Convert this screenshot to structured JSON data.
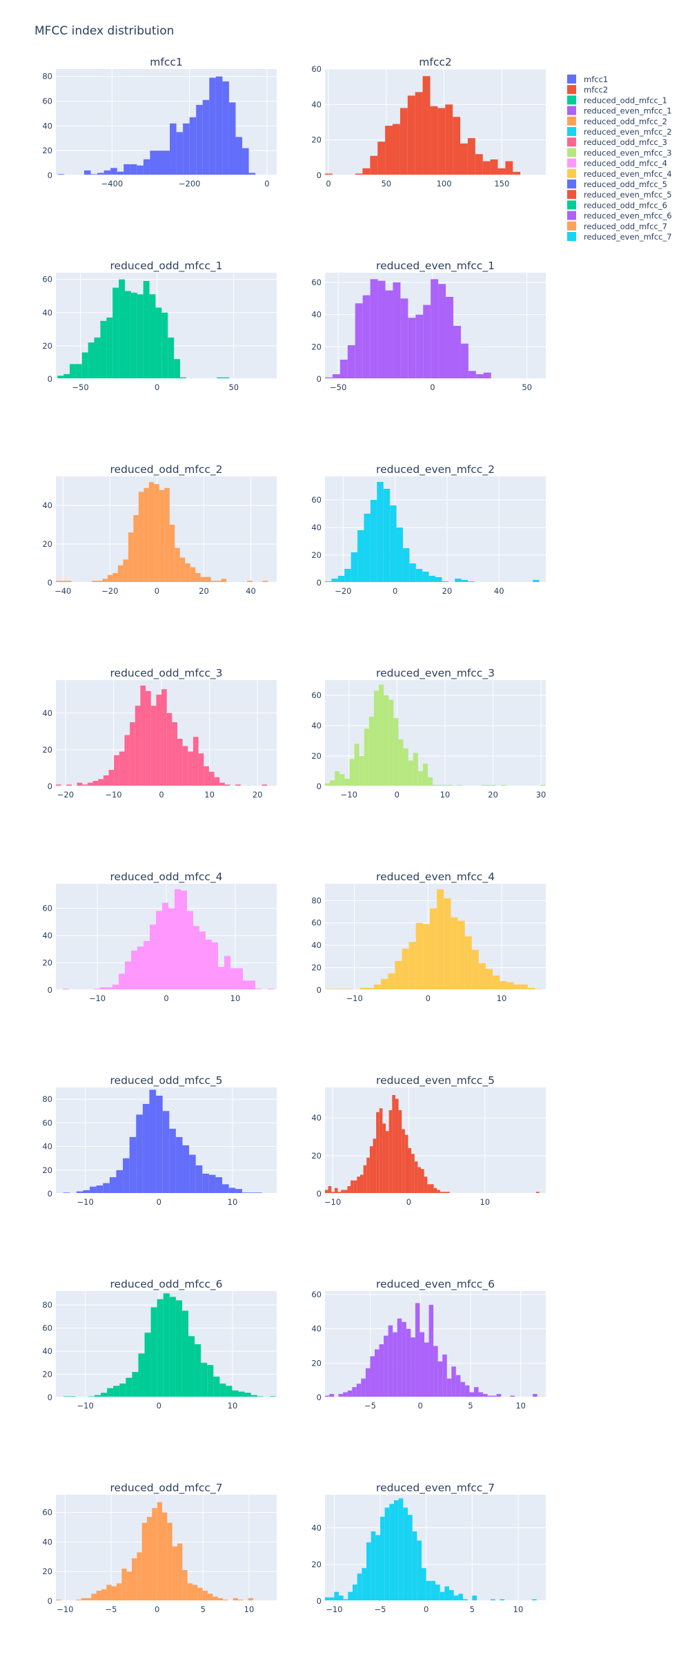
{
  "chart_data": {
    "type": "bar",
    "title": "MFCC index distribution",
    "grid": true,
    "legend_placement": "right-top",
    "subplots": [
      {
        "name": "mfcc1",
        "color": "#636efa",
        "x0": -540,
        "bin": 17,
        "xticks": [
          {
            "v": -400,
            "label": "−400"
          },
          {
            "v": -200,
            "label": "−200"
          },
          {
            "v": 0,
            "label": "0"
          }
        ],
        "yticks": [
          0,
          20,
          40,
          60,
          80
        ],
        "xlim": [
          -545,
          25
        ],
        "ylim": [
          0,
          86
        ],
        "counts": [
          1,
          0,
          0,
          0,
          4,
          1,
          2,
          4,
          6,
          3,
          9,
          9,
          8,
          13,
          20,
          20,
          20,
          42,
          35,
          42,
          47,
          57,
          61,
          79,
          80,
          76,
          59,
          31,
          22,
          2
        ]
      },
      {
        "name": "mfcc2",
        "color": "#ef553b",
        "x0": -3,
        "bin": 6.5,
        "xticks": [
          {
            "v": 0,
            "label": "0"
          },
          {
            "v": 50,
            "label": "50"
          },
          {
            "v": 100,
            "label": "100"
          },
          {
            "v": 150,
            "label": "150"
          }
        ],
        "yticks": [
          0,
          20,
          40,
          60
        ],
        "xlim": [
          -3,
          188
        ],
        "ylim": [
          0,
          60
        ],
        "counts": [
          1,
          0,
          0,
          0,
          1,
          4,
          11,
          19,
          28,
          29,
          38,
          45,
          47,
          56,
          39,
          38,
          40,
          33,
          18,
          21,
          12,
          8,
          9,
          4,
          8,
          2,
          0,
          0,
          0
        ]
      },
      {
        "name": "reduced_odd_mfcc_1",
        "color": "#00cc96",
        "x0": -65,
        "bin": 4,
        "xticks": [
          {
            "v": -50,
            "label": "−50"
          },
          {
            "v": 0,
            "label": "0"
          },
          {
            "v": 50,
            "label": "50"
          }
        ],
        "yticks": [
          0,
          20,
          40,
          60
        ],
        "xlim": [
          -66,
          78
        ],
        "ylim": [
          0,
          64
        ],
        "counts": [
          2,
          3,
          9,
          9,
          16,
          22,
          25,
          35,
          37,
          55,
          60,
          53,
          52,
          51,
          59,
          51,
          43,
          40,
          25,
          12,
          1,
          0,
          0,
          0,
          0,
          0,
          1,
          1,
          0
        ]
      },
      {
        "name": "reduced_even_mfcc_1",
        "color": "#ab63fa",
        "x0": -57,
        "bin": 4,
        "xticks": [
          {
            "v": -50,
            "label": "−50"
          },
          {
            "v": 0,
            "label": "0"
          },
          {
            "v": 50,
            "label": "50"
          }
        ],
        "yticks": [
          0,
          20,
          40,
          60
        ],
        "xlim": [
          -57,
          60
        ],
        "ylim": [
          0,
          66
        ],
        "counts": [
          1,
          3,
          12,
          21,
          47,
          52,
          62,
          61,
          55,
          60,
          50,
          38,
          40,
          46,
          62,
          59,
          51,
          33,
          22,
          5,
          3,
          4
        ]
      },
      {
        "name": "reduced_odd_mfcc_2",
        "color": "#ffa15a",
        "x0": -43,
        "bin": 2.2,
        "xticks": [
          {
            "v": -40,
            "label": "−40"
          },
          {
            "v": -20,
            "label": "−20"
          },
          {
            "v": 0,
            "label": "0"
          },
          {
            "v": 20,
            "label": "20"
          },
          {
            "v": 40,
            "label": "40"
          }
        ],
        "yticks": [
          0,
          20,
          40
        ],
        "xlim": [
          -43,
          51
        ],
        "ylim": [
          0,
          55
        ],
        "counts": [
          1,
          1,
          1,
          0,
          0,
          0,
          0,
          1,
          1,
          2,
          4,
          5,
          9,
          12,
          26,
          35,
          47,
          49,
          52,
          51,
          48,
          49,
          30,
          18,
          13,
          10,
          8,
          5,
          3,
          3,
          1,
          1,
          2,
          0,
          0,
          0,
          0,
          1,
          0,
          0,
          1
        ]
      },
      {
        "name": "reduced_even_mfcc_2",
        "color": "#19d3f3",
        "x0": -27,
        "bin": 2.5,
        "xticks": [
          {
            "v": -20,
            "label": "−20"
          },
          {
            "v": 0,
            "label": "0"
          },
          {
            "v": 20,
            "label": "20"
          },
          {
            "v": 40,
            "label": "40"
          }
        ],
        "yticks": [
          0,
          20,
          40,
          60
        ],
        "xlim": [
          -27,
          58
        ],
        "ylim": [
          0,
          77
        ],
        "counts": [
          1,
          3,
          5,
          10,
          22,
          38,
          50,
          60,
          73,
          68,
          56,
          40,
          25,
          14,
          10,
          8,
          5,
          4,
          1,
          0,
          3,
          2,
          1,
          0,
          0,
          0,
          0,
          0,
          0,
          0,
          0,
          0,
          2
        ]
      },
      {
        "name": "reduced_odd_mfcc_3",
        "color": "#ff6692",
        "x0": -22,
        "bin": 1.1,
        "xticks": [
          {
            "v": -20,
            "label": "−20"
          },
          {
            "v": -10,
            "label": "−10"
          },
          {
            "v": 0,
            "label": "0"
          },
          {
            "v": 10,
            "label": "10"
          },
          {
            "v": 20,
            "label": "20"
          }
        ],
        "yticks": [
          0,
          20,
          40
        ],
        "xlim": [
          -22,
          24
        ],
        "ylim": [
          0,
          58
        ],
        "counts": [
          1,
          0,
          1,
          0,
          2,
          1,
          2,
          3,
          4,
          6,
          9,
          17,
          19,
          28,
          35,
          44,
          55,
          52,
          44,
          50,
          53,
          40,
          35,
          26,
          22,
          19,
          27,
          18,
          11,
          8,
          5,
          2,
          1,
          0,
          1,
          0,
          0,
          0,
          0,
          1,
          0
        ]
      },
      {
        "name": "reduced_even_mfcc_3",
        "color": "#b6e880",
        "x0": -15,
        "bin": 1.02,
        "xticks": [
          {
            "v": -10,
            "label": "−10"
          },
          {
            "v": 0,
            "label": "0"
          },
          {
            "v": 10,
            "label": "10"
          },
          {
            "v": 20,
            "label": "20"
          },
          {
            "v": 30,
            "label": "30"
          }
        ],
        "yticks": [
          0,
          20,
          40,
          60
        ],
        "xlim": [
          -15,
          31
        ],
        "ylim": [
          0,
          70
        ],
        "counts": [
          2,
          4,
          10,
          8,
          5,
          18,
          28,
          20,
          38,
          46,
          63,
          67,
          60,
          57,
          45,
          31,
          25,
          17,
          22,
          10,
          15,
          6,
          1,
          1,
          1,
          1,
          0,
          1,
          0,
          0,
          0,
          0,
          1,
          1,
          1,
          0,
          1,
          0,
          0,
          0,
          0,
          0,
          0,
          0,
          1
        ]
      },
      {
        "name": "reduced_odd_mfcc_4",
        "color": "#ff97ff",
        "x0": -15,
        "bin": 0.9,
        "xticks": [
          {
            "v": -10,
            "label": "−10"
          },
          {
            "v": 0,
            "label": "0"
          },
          {
            "v": 10,
            "label": "10"
          }
        ],
        "yticks": [
          0,
          20,
          40,
          60
        ],
        "xlim": [
          -16,
          16
        ],
        "ylim": [
          0,
          78
        ],
        "counts": [
          1,
          0,
          0,
          0,
          0,
          1,
          2,
          2,
          4,
          12,
          21,
          29,
          32,
          36,
          48,
          58,
          64,
          60,
          74,
          73,
          58,
          47,
          43,
          37,
          35,
          17,
          25,
          16,
          16,
          7,
          7,
          1,
          0,
          1,
          0,
          1
        ]
      },
      {
        "name": "reduced_even_mfcc_4",
        "color": "#fecb52",
        "x0": -14,
        "bin": 0.95,
        "xticks": [
          {
            "v": -10,
            "label": "−10"
          },
          {
            "v": 0,
            "label": "0"
          },
          {
            "v": 10,
            "label": "10"
          }
        ],
        "yticks": [
          0,
          20,
          40,
          60,
          80
        ],
        "xlim": [
          -14,
          16
        ],
        "ylim": [
          0,
          95
        ],
        "counts": [
          1,
          1,
          1,
          1,
          0,
          2,
          2,
          5,
          10,
          15,
          26,
          37,
          43,
          60,
          59,
          73,
          90,
          82,
          65,
          62,
          48,
          36,
          24,
          19,
          13,
          8,
          7,
          5,
          5,
          2,
          1,
          0
        ]
      },
      {
        "name": "reduced_odd_mfcc_5",
        "color": "#636efa",
        "x0": -13,
        "bin": 0.9,
        "xticks": [
          {
            "v": -10,
            "label": "−10"
          },
          {
            "v": 0,
            "label": "0"
          },
          {
            "v": 10,
            "label": "10"
          }
        ],
        "yticks": [
          0,
          20,
          40,
          60,
          80
        ],
        "xlim": [
          -14,
          16
        ],
        "ylim": [
          0,
          90
        ],
        "counts": [
          1,
          0,
          2,
          3,
          6,
          7,
          9,
          14,
          20,
          30,
          48,
          67,
          76,
          88,
          83,
          70,
          55,
          48,
          41,
          33,
          24,
          17,
          16,
          14,
          8,
          5,
          4,
          1,
          1,
          1,
          0
        ]
      },
      {
        "name": "reduced_even_mfcc_5",
        "color": "#ef553b",
        "x0": -11,
        "bin": 0.42,
        "xticks": [
          {
            "v": -10,
            "label": "−10"
          },
          {
            "v": 0,
            "label": "0"
          },
          {
            "v": 10,
            "label": "10"
          }
        ],
        "yticks": [
          0,
          20,
          40
        ],
        "xlim": [
          -11,
          18
        ],
        "ylim": [
          0,
          56
        ],
        "counts": [
          2,
          4,
          1,
          3,
          1,
          2,
          2,
          4,
          7,
          7,
          9,
          10,
          15,
          19,
          25,
          29,
          43,
          45,
          37,
          33,
          44,
          52,
          50,
          44,
          34,
          31,
          24,
          21,
          17,
          14,
          13,
          9,
          5,
          5,
          3,
          2,
          1,
          1,
          1,
          0,
          0,
          0,
          0,
          0,
          0,
          0,
          0,
          0,
          0,
          0,
          0,
          0,
          0,
          0,
          0,
          0,
          0,
          0,
          0,
          0,
          0,
          0,
          0,
          0,
          0,
          0,
          1
        ]
      },
      {
        "name": "reduced_odd_mfcc_6",
        "color": "#00cc96",
        "x0": -13,
        "bin": 0.85,
        "xticks": [
          {
            "v": -10,
            "label": "−10"
          },
          {
            "v": 0,
            "label": "0"
          },
          {
            "v": 10,
            "label": "10"
          }
        ],
        "yticks": [
          0,
          20,
          40,
          60,
          80
        ],
        "xlim": [
          -14,
          16
        ],
        "ylim": [
          0,
          92
        ],
        "counts": [
          1,
          1,
          0,
          0,
          1,
          2,
          4,
          8,
          10,
          12,
          17,
          22,
          38,
          56,
          78,
          85,
          90,
          87,
          84,
          75,
          53,
          46,
          30,
          28,
          18,
          12,
          10,
          6,
          5,
          4,
          2,
          1,
          0,
          1
        ]
      },
      {
        "name": "reduced_even_mfcc_6",
        "color": "#ab63fa",
        "x0": -9.5,
        "bin": 0.45,
        "xticks": [
          {
            "v": -5,
            "label": "−5"
          },
          {
            "v": 0,
            "label": "0"
          },
          {
            "v": 5,
            "label": "5"
          },
          {
            "v": 10,
            "label": "10"
          }
        ],
        "yticks": [
          0,
          20,
          40,
          60
        ],
        "xlim": [
          -9.5,
          12.5
        ],
        "ylim": [
          0,
          62
        ],
        "counts": [
          1,
          2,
          0,
          2,
          3,
          4,
          6,
          8,
          11,
          17,
          24,
          28,
          31,
          36,
          42,
          38,
          46,
          44,
          40,
          35,
          55,
          38,
          32,
          54,
          30,
          21,
          25,
          11,
          18,
          13,
          9,
          7,
          3,
          6,
          3,
          2,
          1,
          1,
          2,
          0,
          0,
          1,
          0,
          0,
          0,
          0,
          2
        ]
      },
      {
        "name": "reduced_odd_mfcc_7",
        "color": "#ffa15a",
        "x0": -11,
        "bin": 0.55,
        "xticks": [
          {
            "v": -10,
            "label": "−10"
          },
          {
            "v": -5,
            "label": "−5"
          },
          {
            "v": 0,
            "label": "0"
          },
          {
            "v": 5,
            "label": "5"
          },
          {
            "v": 10,
            "label": "10"
          }
        ],
        "yticks": [
          0,
          20,
          40,
          60
        ],
        "xlim": [
          -11,
          13
        ],
        "ylim": [
          0,
          72
        ],
        "counts": [
          1,
          0,
          0,
          0,
          1,
          2,
          2,
          5,
          7,
          8,
          11,
          10,
          12,
          22,
          20,
          29,
          33,
          53,
          57,
          63,
          67,
          60,
          53,
          37,
          39,
          21,
          12,
          11,
          9,
          7,
          5,
          3,
          2,
          1,
          0,
          2,
          1,
          0,
          2
        ]
      },
      {
        "name": "reduced_even_mfcc_7",
        "color": "#19d3f3",
        "x0": -11,
        "bin": 0.5,
        "xticks": [
          {
            "v": -10,
            "label": "−10"
          },
          {
            "v": -5,
            "label": "−5"
          },
          {
            "v": 0,
            "label": "0"
          },
          {
            "v": 5,
            "label": "5"
          },
          {
            "v": 10,
            "label": "10"
          }
        ],
        "yticks": [
          0,
          20,
          40
        ],
        "xlim": [
          -11,
          13
        ],
        "ylim": [
          0,
          58
        ],
        "counts": [
          2,
          2,
          5,
          3,
          1,
          5,
          9,
          15,
          18,
          32,
          38,
          36,
          46,
          51,
          53,
          55,
          56,
          51,
          47,
          38,
          33,
          18,
          11,
          11,
          9,
          5,
          8,
          6,
          3,
          4,
          1,
          0,
          3,
          0,
          0,
          0,
          1,
          0,
          1,
          0,
          0,
          0,
          0,
          0,
          0,
          1
        ]
      }
    ]
  }
}
